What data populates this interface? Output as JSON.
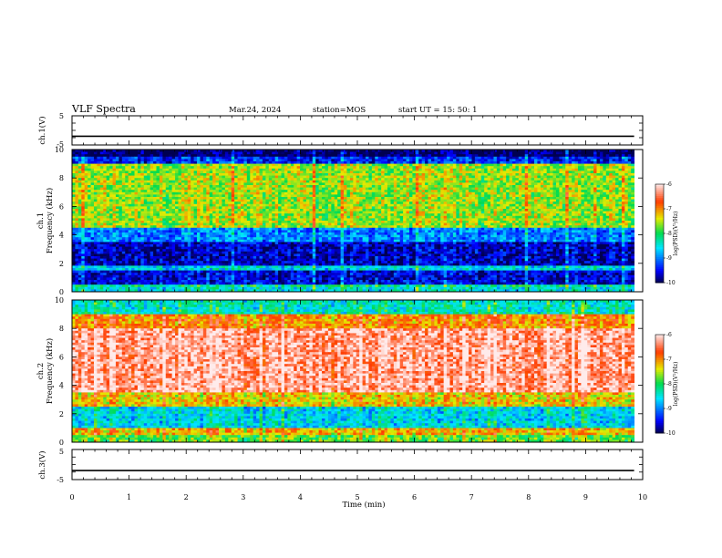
{
  "header": {
    "title": "VLF Spectra",
    "date": "Mar.24, 2024",
    "station": "station=MOS",
    "start": "start UT = 15: 50: 1"
  },
  "chart_data": [
    {
      "type": "line",
      "panel": "ch1-waveform",
      "ylabel": "ch.1(V)",
      "ylim": [
        -5,
        5
      ],
      "yticks": [
        "5",
        "-5"
      ],
      "x": [
        0,
        1,
        2,
        3,
        4,
        5,
        6,
        7,
        8,
        9,
        9.85
      ],
      "series": [
        {
          "values": [
            -2,
            -2,
            -2,
            -2,
            -2,
            -2,
            -2,
            -2,
            -2,
            -2,
            -2
          ]
        }
      ]
    },
    {
      "type": "heatmap",
      "panel": "ch1-spectrogram",
      "ylabel": "ch.1\nFrequency (kHz)",
      "ylim": [
        0,
        10
      ],
      "xlim": [
        0,
        9.85
      ],
      "yticks": [
        "0",
        "2",
        "4",
        "6",
        "8",
        "10"
      ],
      "colorbar": {
        "label": "log(PSD)(V²/Hz)",
        "range": [
          -10,
          -6
        ],
        "ticks": [
          "-6",
          "-7",
          "-8",
          "-9",
          "-10"
        ]
      },
      "bands": [
        {
          "f0": 0,
          "f1": 0.3,
          "level": -8.5
        },
        {
          "f0": 0.3,
          "f1": 0.5,
          "level": -8.2
        },
        {
          "f0": 0.5,
          "f1": 1.5,
          "level": -9.6
        },
        {
          "f0": 1.5,
          "f1": 1.8,
          "level": -8.6
        },
        {
          "f0": 1.8,
          "f1": 3.5,
          "level": -9.7
        },
        {
          "f0": 3.5,
          "f1": 4.5,
          "level": -9.0
        },
        {
          "f0": 4.5,
          "f1": 9.0,
          "level": -7.6
        },
        {
          "f0": 9.0,
          "f1": 9.5,
          "level": -9.4
        },
        {
          "f0": 9.5,
          "f1": 10.0,
          "level": -10.0
        }
      ]
    },
    {
      "type": "heatmap",
      "panel": "ch2-spectrogram",
      "ylabel": "ch.2\nFrequency (kHz)",
      "ylim": [
        0,
        10
      ],
      "xlim": [
        0,
        9.85
      ],
      "yticks": [
        "0",
        "2",
        "4",
        "6",
        "8",
        "10"
      ],
      "colorbar": {
        "label": "log(PSD)(V²/Hz)",
        "range": [
          -10,
          -6
        ],
        "ticks": [
          "-6",
          "-7",
          "-8",
          "-9",
          "-10"
        ]
      },
      "bands": [
        {
          "f0": 0,
          "f1": 0.5,
          "level": -7.8
        },
        {
          "f0": 0.5,
          "f1": 1.0,
          "level": -7.2
        },
        {
          "f0": 1.0,
          "f1": 2.5,
          "level": -8.6
        },
        {
          "f0": 2.5,
          "f1": 3.5,
          "level": -7.3
        },
        {
          "f0": 3.5,
          "f1": 8.0,
          "level": -6.3
        },
        {
          "f0": 8.0,
          "f1": 9.0,
          "level": -7.0
        },
        {
          "f0": 9.0,
          "f1": 10.0,
          "level": -8.4
        }
      ]
    },
    {
      "type": "line",
      "panel": "ch3-waveform",
      "ylabel": "ch.3(V)",
      "xlabel": "Time (min)",
      "ylim": [
        -5,
        5
      ],
      "xlim": [
        0,
        10
      ],
      "yticks": [
        "5",
        "-5"
      ],
      "xticks": [
        "0",
        "1",
        "2",
        "3",
        "4",
        "5",
        "6",
        "7",
        "8",
        "9",
        "10"
      ],
      "x": [
        0,
        1,
        2,
        3,
        4,
        5,
        6,
        7,
        8,
        9,
        9.85
      ],
      "series": [
        {
          "values": [
            -2,
            -2,
            -2,
            -2,
            -2,
            -2,
            -2,
            -2,
            -2,
            -2,
            -2
          ]
        }
      ]
    }
  ]
}
